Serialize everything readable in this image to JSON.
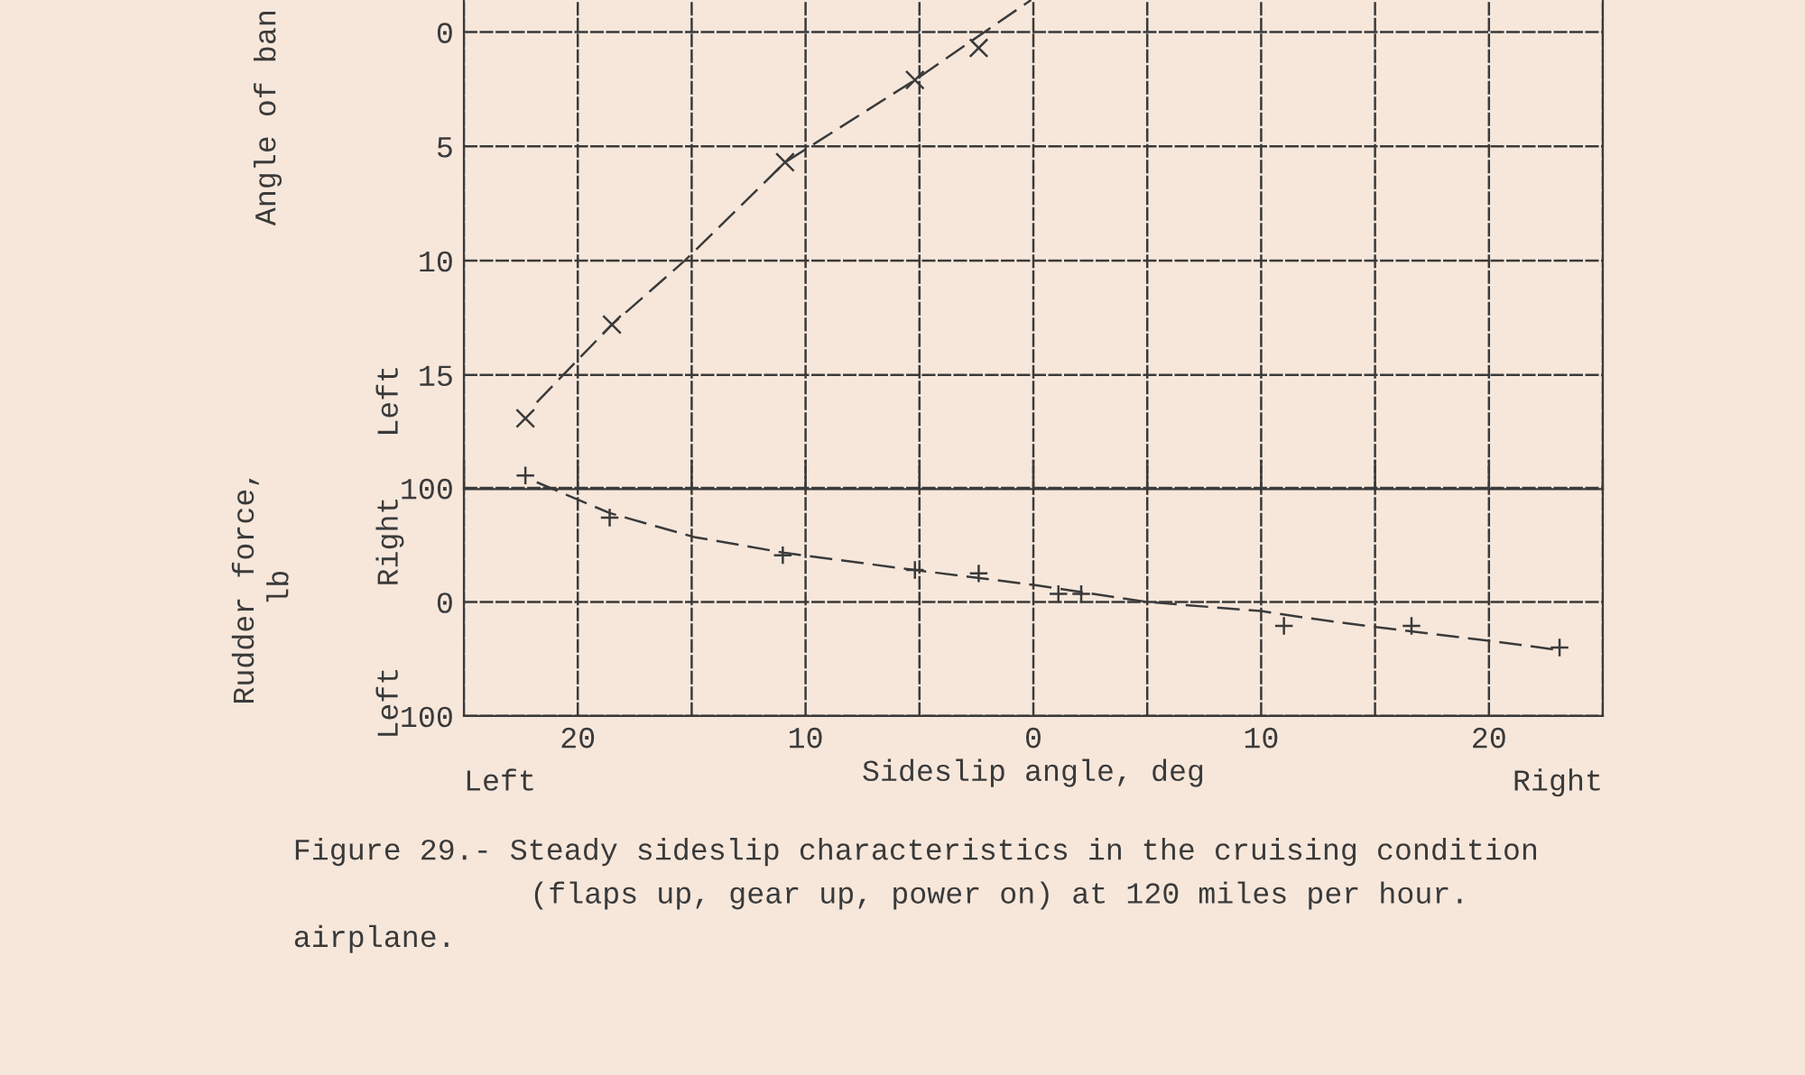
{
  "chart_data": [
    {
      "type": "scatter",
      "ylabel": "Angle of ban",
      "xlim": [
        -25,
        25
      ],
      "xticks": [
        {
          "value": -25,
          "label": null
        },
        {
          "value": -20,
          "label": null
        },
        {
          "value": -15,
          "label": null
        },
        {
          "value": -10,
          "label": null
        },
        {
          "value": -5,
          "label": null
        },
        {
          "value": 0,
          "label": null
        },
        {
          "value": 5,
          "label": null
        },
        {
          "value": 10,
          "label": null
        },
        {
          "value": 15,
          "label": null
        },
        {
          "value": 20,
          "label": null
        },
        {
          "value": 25,
          "label": null
        }
      ],
      "ylim": [
        20,
        -1.4
      ],
      "yticks": [
        0,
        5,
        10,
        15,
        {
          "value": 20,
          "label": null
        }
      ],
      "tick_labels": "y",
      "grid": true,
      "marker": "x",
      "series": [
        {
          "color": "#3a3a3a",
          "x": [
            -22.3,
            -18.5,
            -10.9,
            -5.2,
            -2.4
          ],
          "values": [
            16.9,
            12.8,
            5.7,
            2.1,
            0.7
          ]
        },
        {
          "type": "line",
          "color": "#3a3a3a",
          "line_style": "dashed",
          "marker": "none",
          "x": [
            -21.8,
            -18.5,
            -15.3,
            -10.9,
            -5.2,
            -2.0,
            -0.1
          ],
          "values": [
            16.2,
            12.8,
            10.0,
            5.7,
            2.1,
            -0.1,
            -1.4
          ]
        }
      ],
      "annotations": [
        "Left"
      ]
    },
    {
      "type": "scatter",
      "ylabel": "Rudder force,\nlb",
      "xlabel": "Sideslip angle, deg",
      "xlim": [
        -25,
        25
      ],
      "xticks": [
        {
          "value": -25,
          "label": null
        },
        {
          "value": -20,
          "label": "20"
        },
        {
          "value": -15,
          "label": null
        },
        {
          "value": -10,
          "label": "10"
        },
        {
          "value": -5,
          "label": null
        },
        0,
        {
          "value": 5,
          "label": null
        },
        10,
        {
          "value": 15,
          "label": null
        },
        20,
        {
          "value": 25,
          "label": null
        }
      ],
      "ylim": [
        -100,
        125
      ],
      "yticks": [
        {
          "value": -100,
          "label": "100"
        },
        0,
        100
      ],
      "grid": true,
      "marker": "cross",
      "series": [
        {
          "color": "#3a3a3a",
          "x": [
            -22.3,
            -18.6,
            -11.0,
            -5.2,
            -2.4,
            1.1,
            2.1,
            11.0,
            16.6,
            23.1
          ],
          "values": [
            111,
            74,
            41,
            28,
            25,
            7,
            7,
            -21,
            -21,
            -40
          ]
        },
        {
          "type": "line",
          "color": "#3a3a3a",
          "line_style": "dashed",
          "marker": "none",
          "x": [
            -21.8,
            -18.6,
            -14.9,
            -10.9,
            -5.2,
            0,
            5,
            10,
            12,
            15,
            20,
            23
          ],
          "values": [
            105,
            78,
            57,
            43,
            28,
            15,
            0,
            -8,
            -14,
            -22,
            -34,
            -42
          ]
        }
      ],
      "annotations": [
        "Right",
        "Left",
        "Left",
        "Right",
        "Figure 29.- Steady sideslip characteristics in the cruising condition",
        "(flaps up, gear up, power on) at 120 miles per hour.",
        "airplane."
      ]
    }
  ]
}
